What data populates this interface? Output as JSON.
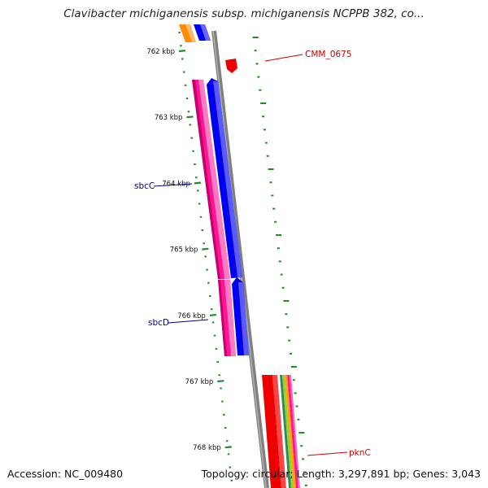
{
  "title": "Clavibacter michiganensis subsp. michiganensis NCPPB 382, co...",
  "footer": {
    "accession": "Accession: NC_009480",
    "summary": "Topology: circular; Length: 3,297,891 bp; Genes: 3,043"
  },
  "ruler": {
    "ticks": [
      "762 kbp",
      "763 kbp",
      "764 kbp",
      "765 kbp",
      "766 kbp",
      "767 kbp",
      "768 kbp"
    ],
    "color": "#228B22"
  },
  "gene_labels": {
    "cmm0675": "CMM_0675",
    "sbcC": "sbcC",
    "sbcD": "sbcD",
    "pknC": "pknC"
  },
  "colors": {
    "backbone": "#8c8c8c",
    "forward_cds": "#0000ee",
    "reverse_cds": "#ff1493",
    "orf_red": "#ee0000",
    "orange": "#ff8c00",
    "label_blue": "#00008b",
    "label_red": "#cc0000"
  }
}
